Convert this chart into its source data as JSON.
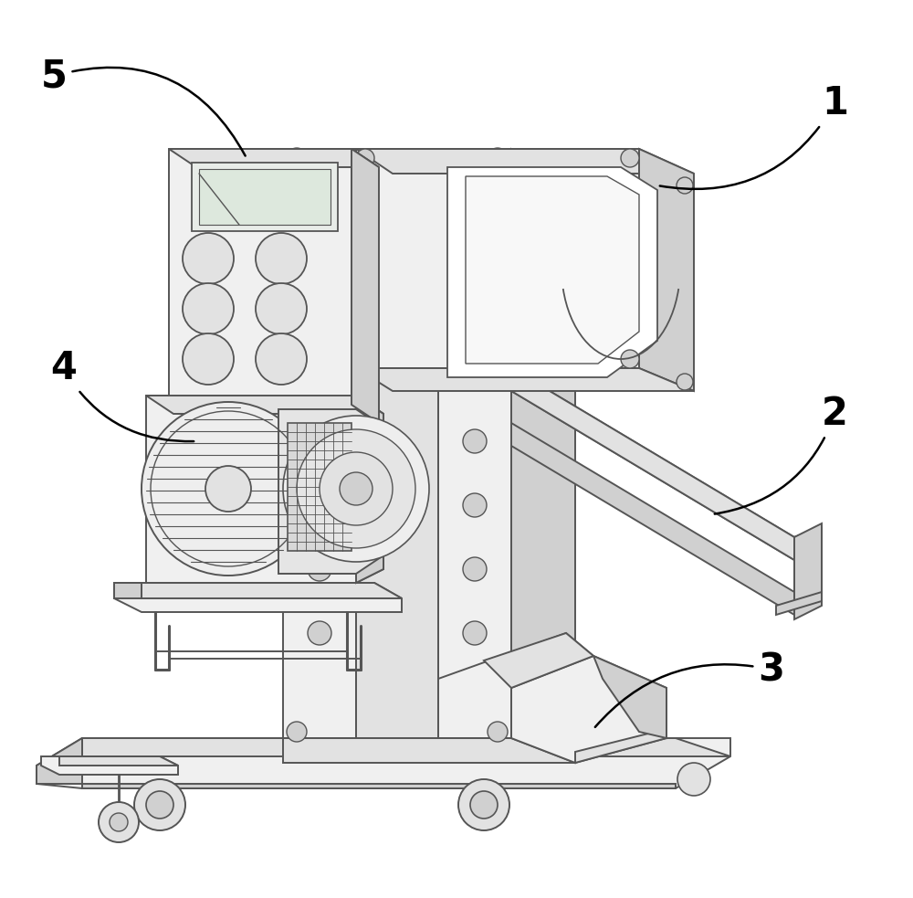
{
  "bg_color": "#ffffff",
  "line_color": "#555555",
  "line_width": 1.4,
  "fc_light": "#f0f0f0",
  "fc_mid": "#e2e2e2",
  "fc_dark": "#d0d0d0",
  "fc_white": "#ffffff",
  "label_fontsize": 30,
  "figsize": [
    10.0,
    9.83
  ],
  "dpi": 100
}
